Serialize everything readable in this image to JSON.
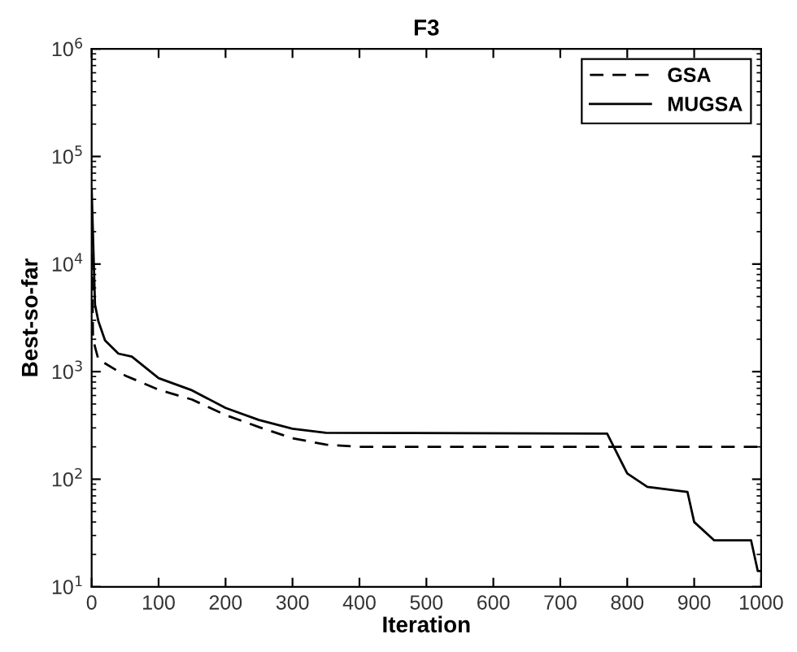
{
  "chart_data": {
    "type": "line",
    "title": "F3",
    "xlabel": "Iteration",
    "ylabel": "Best-so-far",
    "log": "y",
    "xlim": [
      0,
      1000
    ],
    "ylim": [
      10,
      1000000
    ],
    "xticks": [
      0,
      100,
      200,
      300,
      400,
      500,
      600,
      700,
      800,
      900,
      1000
    ],
    "yticks": [
      {
        "value": 10,
        "label": "10$^{1}$"
      },
      {
        "value": 100,
        "label": "10$^{2}$"
      },
      {
        "value": 1000,
        "label": "10$^{3}$"
      },
      {
        "value": 10000,
        "label": "10$^{4}$"
      },
      {
        "value": 100000,
        "label": "10$^{5}$"
      },
      {
        "value": 1000000,
        "label": "10$^{6}$"
      }
    ],
    "legend": "top right",
    "grid": false,
    "series": [
      {
        "name": "GSA",
        "color": "#000000",
        "line_style": "dashed",
        "x": [
          0,
          2,
          10,
          50,
          100,
          150,
          200,
          250,
          300,
          350,
          400,
          1000
        ],
        "values": [
          20000,
          2000,
          1300,
          920,
          680,
          550,
          395,
          305,
          240,
          210,
          200,
          200
        ]
      },
      {
        "name": "MUGSA",
        "color": "#000000",
        "line_style": "solid",
        "x": [
          0,
          5,
          10,
          20,
          40,
          60,
          100,
          150,
          200,
          250,
          300,
          350,
          770,
          800,
          830,
          890,
          900,
          930,
          985,
          995,
          1000
        ],
        "values": [
          50000,
          4200,
          2950,
          1950,
          1470,
          1380,
          870,
          670,
          460,
          355,
          295,
          270,
          265,
          113,
          85,
          76,
          40,
          27,
          27,
          14,
          14
        ]
      }
    ]
  }
}
